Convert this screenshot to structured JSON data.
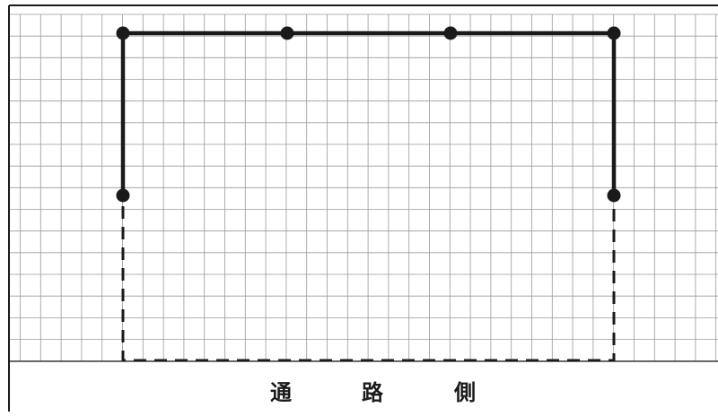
{
  "diagram": {
    "caption_chars": [
      "通",
      "路",
      "側"
    ],
    "colors": {
      "grid_line": "#9a9a9a",
      "outline": "#1a1a1a",
      "background": "#ffffff"
    },
    "solid_path_nodes": 6,
    "dashed_path": true
  }
}
